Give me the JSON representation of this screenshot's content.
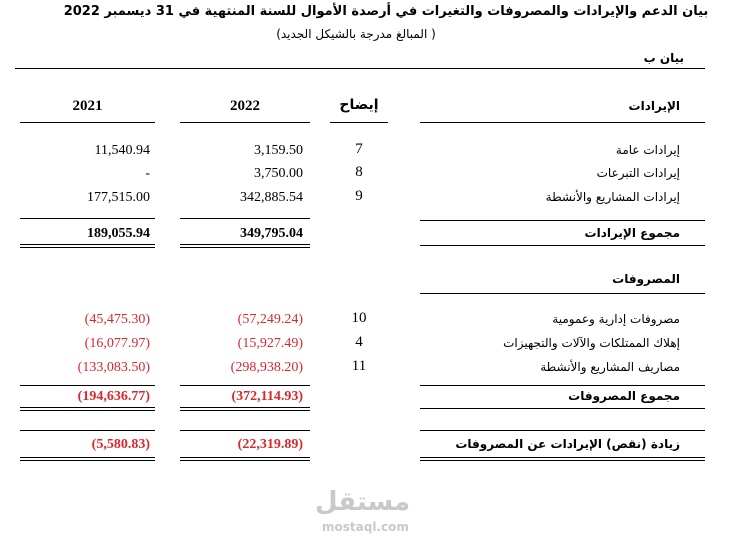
{
  "header": {
    "title": "بيان الدعم والإيرادات والمصروفات والتغيرات في أرصدة الأموال للسنة المنتهية في 31 ديسمبر 2022",
    "subtitle": "( المبالغ مدرجة بالشيكل الجديد)",
    "statement": "بيان ب"
  },
  "columns": {
    "section": "الإيرادات",
    "note": "إيضاح",
    "current": "2022",
    "previous": "2021"
  },
  "revenues": {
    "rows": [
      {
        "label": "إيرادات عامة",
        "note": "7",
        "current": "3,159.50",
        "previous": "11,540.94"
      },
      {
        "label": "إيرادات التبرعات",
        "note": "8",
        "current": "3,750.00",
        "previous": "-"
      },
      {
        "label": "إيرادات المشاريع والأنشطة",
        "note": "9",
        "current": "342,885.54",
        "previous": "177,515.00"
      }
    ],
    "total": {
      "label": "مجموع الإيرادات",
      "current": "349,795.04",
      "previous": "189,055.94"
    }
  },
  "expenses": {
    "title": "المصروفات",
    "rows": [
      {
        "label": "مصروفات إدارية وعمومية",
        "note": "10",
        "current": "(57,249.24)",
        "previous": "(45,475.30)"
      },
      {
        "label": "إهلاك الممتلكات والآلات والتجهيزات",
        "note": "4",
        "current": "(15,927.49)",
        "previous": "(16,077.97)"
      },
      {
        "label": "مصاريف المشاريع والأنشطة",
        "note": "11",
        "current": "(298,938.20)",
        "previous": "(133,083.50)"
      }
    ],
    "total": {
      "label": "مجموع المصروفات",
      "current": "(372,114.93)",
      "previous": "(194,636.77)"
    }
  },
  "net": {
    "label": "زيادة (نقص) الإيرادات عن المصروفات",
    "current": "(22,319.89)",
    "previous": "(5,580.83)"
  },
  "watermark": {
    "logo": "مستقل",
    "site": "mostaql.com"
  }
}
